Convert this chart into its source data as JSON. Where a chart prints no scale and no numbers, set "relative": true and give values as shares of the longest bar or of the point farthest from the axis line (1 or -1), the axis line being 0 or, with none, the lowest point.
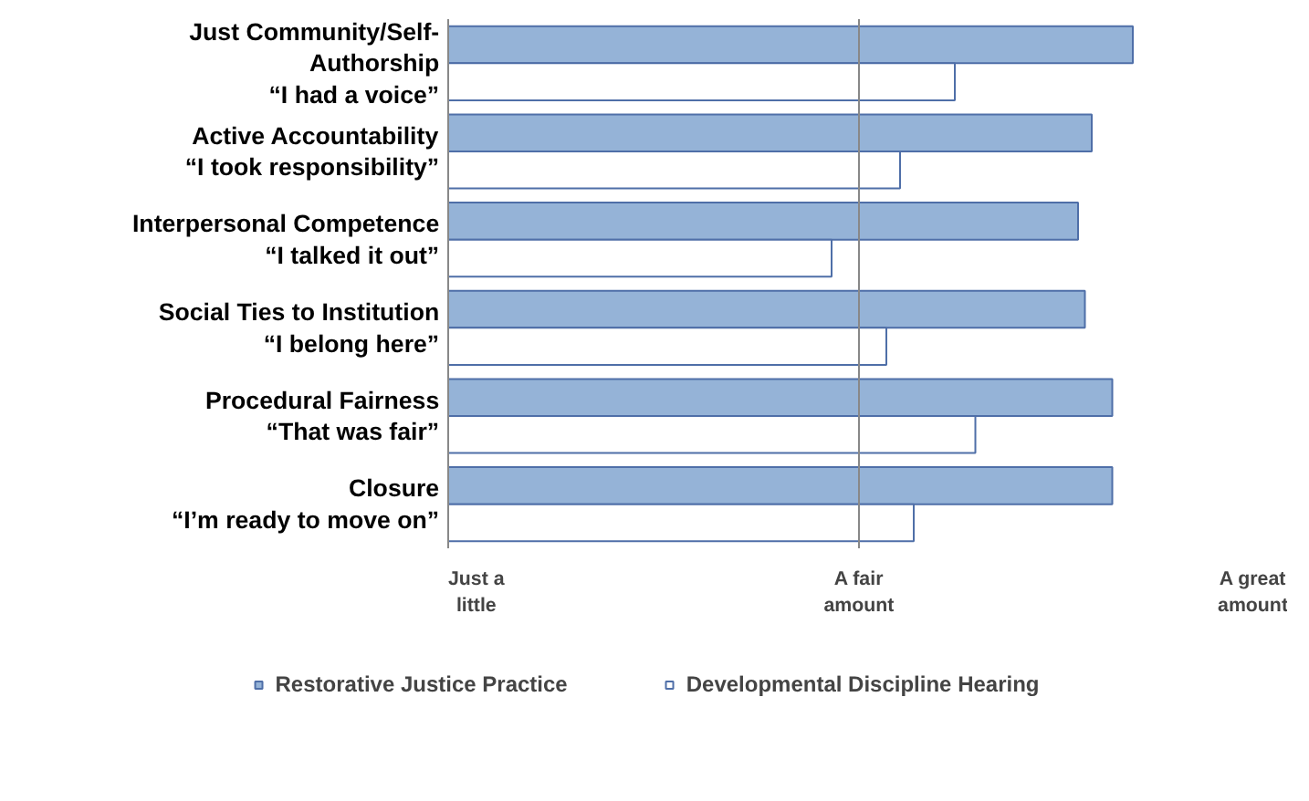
{
  "chart_data": {
    "type": "bar",
    "orientation": "horizontal",
    "relative": true,
    "categories": [
      "Just Community/Self-\nAuthorship\n“I had a voice”",
      "Active Accountability\n“I took responsibility”",
      "Interpersonal Competence\n“I talked it out”",
      "Social Ties to Institution\n“I belong here”",
      "Procedural Fairness\n“That was fair”",
      "Closure\n“I’m ready to move on”"
    ],
    "series": [
      {
        "name": "Restorative Justice Practice",
        "color": "#95b3d7",
        "values": [
          1,
          0.94,
          0.92,
          0.93,
          0.97,
          0.97
        ]
      },
      {
        "name": "Developmental Discipline Hearing",
        "color": "#ffffff",
        "values": [
          0.74,
          0.66,
          0.56,
          0.64,
          0.77,
          0.68
        ]
      }
    ],
    "annotations": [
      "Just a\nlittle",
      "A fair\namount",
      "A great\namount"
    ],
    "ref_lines": [
      {
        "axis": "x",
        "value": 0.6,
        "color": "#888888"
      }
    ],
    "legend": "bottom"
  }
}
